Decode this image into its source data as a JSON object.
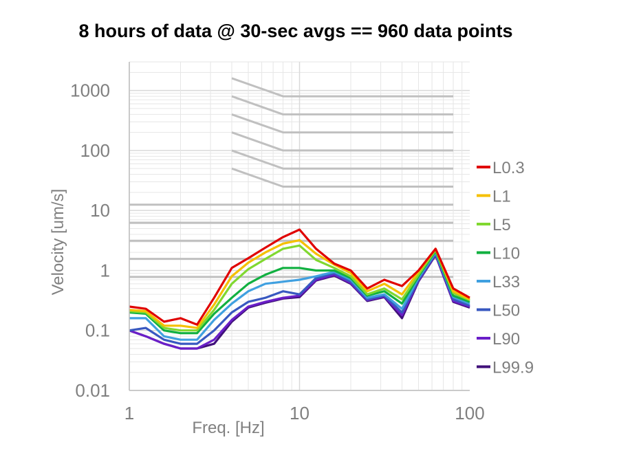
{
  "chart_data": {
    "type": "line",
    "title": "8 hours of data @ 30-sec avgs == 960 data points",
    "xlabel": "Freq. [Hz]",
    "ylabel": "Velocity [um/s]",
    "xscale": "log",
    "yscale": "log",
    "xlim": [
      1,
      100
    ],
    "ylim": [
      0.01,
      3000
    ],
    "x_ticks": [
      {
        "value": 1,
        "label": "1"
      },
      {
        "value": 10,
        "label": "10"
      },
      {
        "value": 100,
        "label": "100"
      }
    ],
    "y_ticks": [
      {
        "value": 0.01,
        "label": "0.01"
      },
      {
        "value": 0.1,
        "label": "0.1"
      },
      {
        "value": 1,
        "label": "1"
      },
      {
        "value": 10,
        "label": "10"
      },
      {
        "value": 100,
        "label": "100"
      },
      {
        "value": 1000,
        "label": "1000"
      }
    ],
    "grid": true,
    "legend_position": "right",
    "x": [
      1,
      1.25,
      1.6,
      2,
      2.5,
      3.15,
      4,
      5,
      6.3,
      8,
      10,
      12.5,
      16,
      20,
      25,
      31.5,
      40,
      50,
      63,
      80,
      100
    ],
    "series": [
      {
        "name": "L0.3",
        "color": "#e00000",
        "values": [
          0.25,
          0.23,
          0.14,
          0.16,
          0.125,
          0.35,
          1.1,
          1.6,
          2.4,
          3.6,
          4.8,
          2.3,
          1.3,
          1.0,
          0.5,
          0.7,
          0.55,
          1.0,
          2.3,
          0.5,
          0.35
        ]
      },
      {
        "name": "L1",
        "color": "#f5c000",
        "values": [
          0.22,
          0.21,
          0.12,
          0.12,
          0.11,
          0.27,
          0.8,
          1.35,
          2.0,
          2.8,
          3.2,
          1.9,
          1.25,
          0.9,
          0.45,
          0.6,
          0.4,
          0.95,
          2.3,
          0.45,
          0.33
        ]
      },
      {
        "name": "L5",
        "color": "#80d830",
        "values": [
          0.21,
          0.2,
          0.11,
          0.1,
          0.1,
          0.22,
          0.6,
          1.05,
          1.55,
          2.3,
          2.6,
          1.5,
          1.1,
          0.8,
          0.4,
          0.5,
          0.33,
          0.85,
          2.2,
          0.42,
          0.32
        ]
      },
      {
        "name": "L10",
        "color": "#10b040",
        "values": [
          0.2,
          0.19,
          0.1,
          0.09,
          0.09,
          0.19,
          0.35,
          0.6,
          0.85,
          1.1,
          1.1,
          1.0,
          1.0,
          0.75,
          0.38,
          0.45,
          0.28,
          0.8,
          2.1,
          0.38,
          0.3
        ]
      },
      {
        "name": "L33",
        "color": "#40a0e0",
        "values": [
          0.16,
          0.16,
          0.08,
          0.07,
          0.07,
          0.15,
          0.28,
          0.45,
          0.6,
          0.65,
          0.7,
          0.8,
          0.95,
          0.7,
          0.35,
          0.4,
          0.23,
          0.75,
          2.0,
          0.36,
          0.28
        ]
      },
      {
        "name": "L50",
        "color": "#3858c0",
        "values": [
          0.1,
          0.11,
          0.07,
          0.06,
          0.06,
          0.1,
          0.2,
          0.3,
          0.35,
          0.45,
          0.4,
          0.75,
          0.9,
          0.65,
          0.33,
          0.38,
          0.2,
          0.7,
          1.9,
          0.33,
          0.26
        ]
      },
      {
        "name": "L90",
        "color": "#6a1ec8",
        "values": [
          0.1,
          0.08,
          0.06,
          0.05,
          0.05,
          0.07,
          0.15,
          0.25,
          0.3,
          0.35,
          0.38,
          0.7,
          0.85,
          0.62,
          0.32,
          0.37,
          0.18,
          0.68,
          1.85,
          0.31,
          0.25
        ]
      },
      {
        "name": "L99.9",
        "color": "#40107a",
        "values": [
          0.1,
          0.08,
          0.06,
          0.05,
          0.05,
          0.06,
          0.14,
          0.24,
          0.29,
          0.34,
          0.36,
          0.68,
          0.82,
          0.6,
          0.31,
          0.36,
          0.16,
          0.66,
          1.8,
          0.3,
          0.24
        ]
      }
    ],
    "reference_curves": [
      {
        "points": [
          [
            4,
            1600
          ],
          [
            8,
            800
          ],
          [
            80,
            800
          ]
        ]
      },
      {
        "points": [
          [
            4,
            800
          ],
          [
            8,
            400
          ],
          [
            80,
            400
          ]
        ]
      },
      {
        "points": [
          [
            4,
            400
          ],
          [
            8,
            200
          ],
          [
            80,
            200
          ]
        ]
      },
      {
        "points": [
          [
            4,
            200
          ],
          [
            8,
            100
          ],
          [
            80,
            100
          ]
        ]
      },
      {
        "points": [
          [
            4,
            100
          ],
          [
            8,
            50
          ],
          [
            80,
            50
          ]
        ]
      },
      {
        "points": [
          [
            4,
            50
          ],
          [
            8,
            25
          ],
          [
            80,
            25
          ]
        ]
      },
      {
        "points": [
          [
            1,
            12.5
          ],
          [
            80,
            12.5
          ]
        ]
      },
      {
        "points": [
          [
            1,
            6.25
          ],
          [
            80,
            6.25
          ]
        ]
      },
      {
        "points": [
          [
            1,
            3.12
          ],
          [
            80,
            3.12
          ]
        ]
      },
      {
        "points": [
          [
            1,
            1.56
          ],
          [
            80,
            1.56
          ]
        ]
      },
      {
        "points": [
          [
            1,
            0.78
          ],
          [
            80,
            0.78
          ]
        ]
      }
    ],
    "colors": {
      "reference_curve": "#c0c0c0",
      "grid": "#e6e6e6",
      "tick_text": "#7f7f7f"
    }
  }
}
